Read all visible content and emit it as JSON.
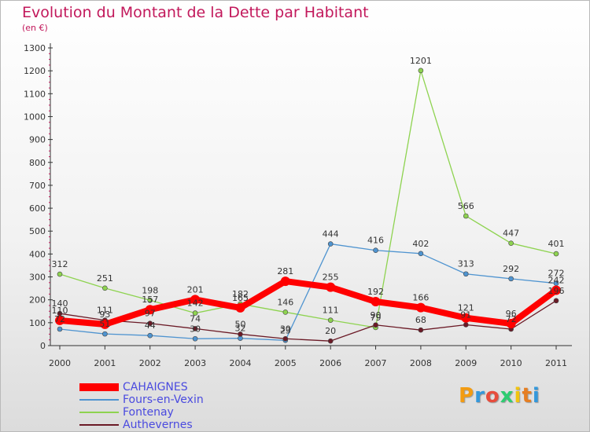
{
  "title": "Evolution du Montant de la Dette par Habitant",
  "unit": "(en €)",
  "logo": {
    "text": "Proxiti",
    "colors": [
      "#f39c12",
      "#3498db",
      "#e74c3c",
      "#2ecc71",
      "#f1c40f",
      "#e67e22",
      "#3498db"
    ]
  },
  "chart_data": {
    "type": "line",
    "title": "Evolution du Montant de la Dette par Habitant",
    "ylabel": "(en €)",
    "x": [
      "2000",
      "2001",
      "2002",
      "2003",
      "2004",
      "2005",
      "2006",
      "2007",
      "2008",
      "2009",
      "2010",
      "2011"
    ],
    "ylim": [
      0,
      1300
    ],
    "yticks": [
      0,
      100,
      200,
      300,
      400,
      500,
      600,
      700,
      800,
      900,
      1000,
      1100,
      1200,
      1300
    ],
    "grid": false,
    "legend_position": "bottom-left",
    "series": [
      {
        "name": "Fontenay",
        "color": "#8ed350",
        "values": [
          312,
          251,
          198,
          142,
          182,
          146,
          111,
          79,
          1201,
          566,
          447,
          401
        ]
      },
      {
        "name": "Fours-en-Vexin",
        "color": "#4f94d0",
        "values": [
          72,
          51,
          44,
          30,
          32,
          23,
          444,
          416,
          402,
          313,
          292,
          272
        ]
      },
      {
        "name": "Authevernes",
        "color": "#6b1a26",
        "values": [
          140,
          111,
          97,
          74,
          50,
          30,
          20,
          90,
          68,
          91,
          72,
          196
        ]
      },
      {
        "name": "CAHAIGNES",
        "color": "#ff0000",
        "values": [
          110,
          93,
          157,
          201,
          165,
          281,
          255,
          192,
          166,
          121,
          96,
          242
        ]
      }
    ],
    "data_labels": [
      {
        "series": 0,
        "labels": [
          "312",
          "251",
          "198",
          "142",
          "182",
          "146",
          "111",
          "79",
          "1201",
          "566",
          "447",
          "401"
        ]
      },
      {
        "series": 1,
        "labels": [
          "72",
          "51",
          "44",
          "30",
          "32",
          "23",
          "444",
          "416",
          "402",
          "313",
          "292",
          "272"
        ]
      },
      {
        "series": 2,
        "labels": [
          "140",
          "111",
          "97",
          "74",
          "50",
          "30",
          "20",
          "90",
          "68",
          "91",
          "72",
          "196"
        ]
      },
      {
        "series": 3,
        "labels": [
          "110",
          "93",
          "157",
          "201",
          "165",
          "281",
          "255",
          "192",
          "166",
          "121",
          "96",
          "242"
        ]
      }
    ]
  },
  "legend": [
    {
      "label": "CAHAIGNES",
      "color": "#ff0000",
      "weight": "thick"
    },
    {
      "label": "Fours-en-Vexin",
      "color": "#4f94d0",
      "weight": "thin"
    },
    {
      "label": "Fontenay",
      "color": "#8ed350",
      "weight": "thin"
    },
    {
      "label": "Authevernes",
      "color": "#6b1a26",
      "weight": "thin"
    }
  ]
}
